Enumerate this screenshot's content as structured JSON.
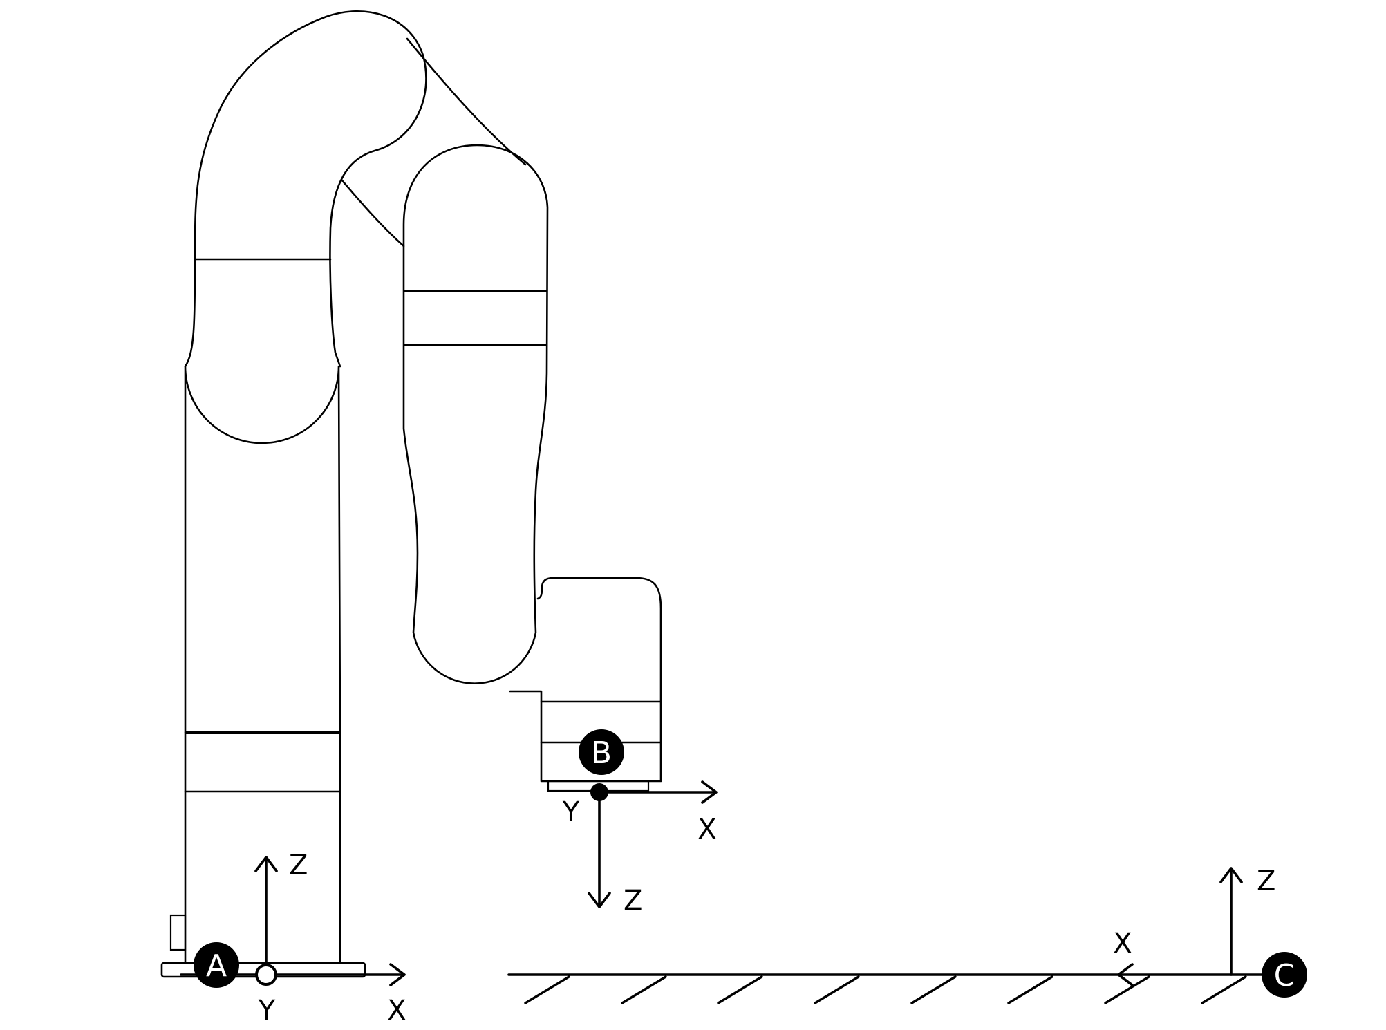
{
  "frames": {
    "base": {
      "badge": "A",
      "axis_x": "X",
      "axis_y": "Y",
      "axis_z": "Z"
    },
    "tool": {
      "badge": "B",
      "axis_x": "X",
      "axis_y": "Y",
      "axis_z": "Z"
    },
    "world": {
      "badge": "C",
      "axis_x": "X",
      "axis_z": "Z"
    }
  }
}
